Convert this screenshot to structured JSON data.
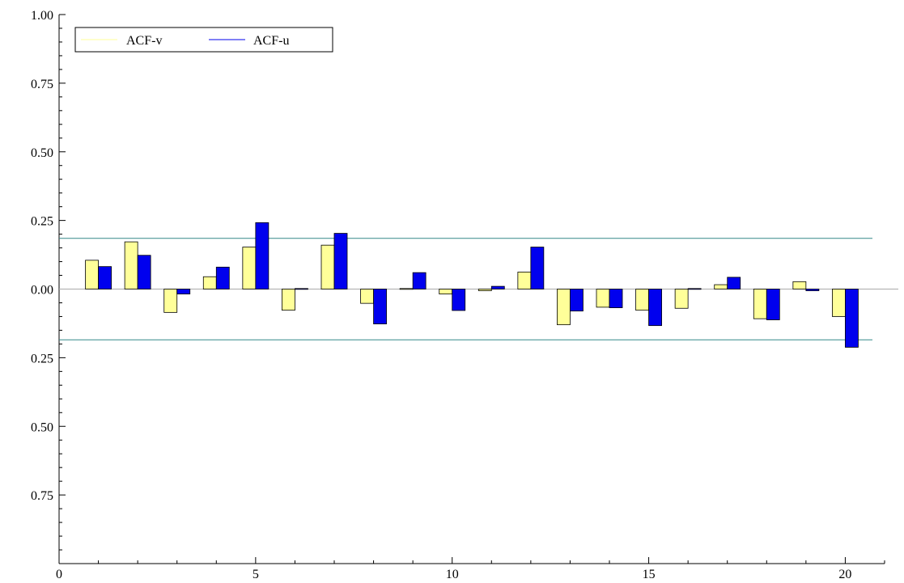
{
  "chart_data": {
    "type": "bar",
    "title": "",
    "xlabel": "",
    "ylabel": "",
    "x": [
      1,
      2,
      3,
      4,
      5,
      6,
      7,
      8,
      9,
      10,
      11,
      12,
      13,
      14,
      15,
      16,
      17,
      18,
      19,
      20
    ],
    "xlim": [
      0,
      21
    ],
    "ylim": [
      -1,
      1
    ],
    "xticks": [
      0,
      5,
      10,
      15,
      20
    ],
    "xtick_labels": [
      "0",
      "5",
      "10",
      "15",
      "20"
    ],
    "yticks": [
      1,
      0.75,
      0.5,
      0.25,
      0,
      -0.25,
      -0.5,
      -0.75
    ],
    "ytick_labels": [
      "1.00",
      "0.75",
      "0.50",
      "0.25",
      "0.00",
      "0.25",
      "0.50",
      "0.75"
    ],
    "series": [
      {
        "name": "ACF-v",
        "color": "#ffff99",
        "values": [
          0.105,
          0.172,
          -0.085,
          0.045,
          0.153,
          -0.077,
          0.16,
          -0.052,
          0.002,
          -0.018,
          -0.006,
          0.062,
          -0.13,
          -0.066,
          -0.077,
          -0.07,
          0.016,
          -0.108,
          0.027,
          -0.1
        ]
      },
      {
        "name": "ACF-u",
        "color": "#0000ee",
        "values": [
          0.082,
          0.123,
          -0.018,
          0.08,
          0.242,
          0.002,
          0.203,
          -0.127,
          0.06,
          -0.078,
          0.01,
          0.153,
          -0.08,
          -0.068,
          -0.133,
          0.002,
          0.043,
          -0.112,
          -0.006,
          -0.212
        ]
      }
    ],
    "reference_lines": {
      "color": "#338888",
      "values": [
        0.185,
        -0.185
      ]
    },
    "zero_line_color": "#aaaaaa",
    "legend": {
      "position": "top-left",
      "entries": [
        {
          "label": "ACF-v",
          "color": "#ffff99"
        },
        {
          "label": "ACF-u",
          "color": "#0000ee"
        }
      ]
    },
    "grid": false
  }
}
